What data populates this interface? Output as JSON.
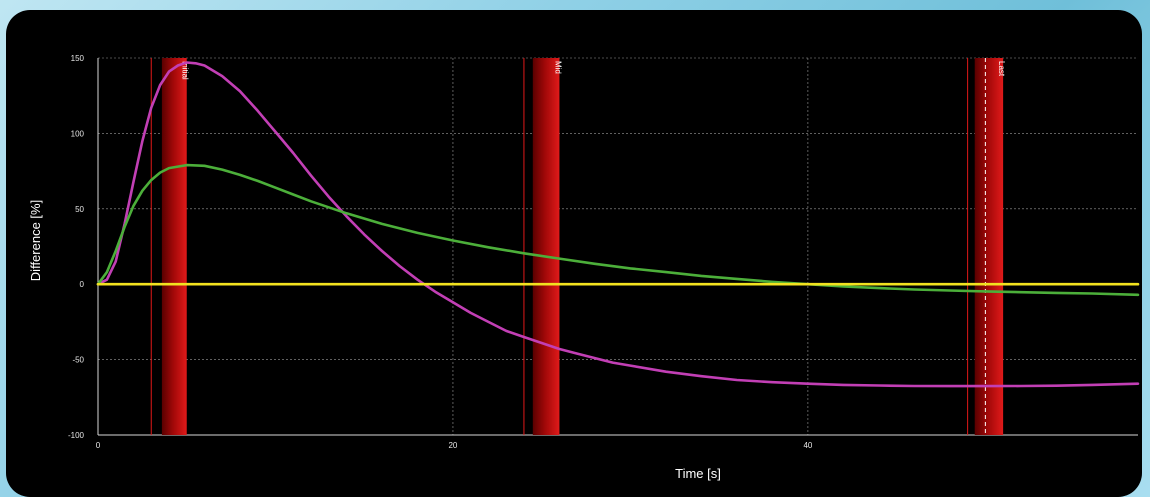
{
  "chart_data": {
    "type": "line",
    "xlabel": "Time [s]",
    "ylabel": "Difference [%]",
    "xlim": [
      0,
      58.6
    ],
    "ylim": [
      -100,
      150
    ],
    "x_ticks": [
      0,
      20,
      40
    ],
    "y_ticks": [
      -100,
      -50,
      0,
      50,
      100,
      150
    ],
    "grid": true,
    "background": "#000000",
    "markers": [
      {
        "label": "Initial",
        "line_x": 3.0,
        "band_start": 3.6,
        "band_end": 5.0
      },
      {
        "label": "Mid",
        "line_x": 24.0,
        "band_start": 24.5,
        "band_end": 26.0
      },
      {
        "label": "Last",
        "line_x": 49.0,
        "band_start": 49.4,
        "band_end": 51.0,
        "dashed_x": 50.0
      }
    ],
    "series": [
      {
        "color": "#c23fb5",
        "points": [
          [
            0,
            0
          ],
          [
            0.5,
            3
          ],
          [
            1,
            15
          ],
          [
            1.5,
            40
          ],
          [
            2,
            68
          ],
          [
            2.5,
            95
          ],
          [
            3,
            117
          ],
          [
            3.5,
            132
          ],
          [
            4,
            141
          ],
          [
            4.5,
            145
          ],
          [
            5,
            147
          ],
          [
            5.5,
            146.5
          ],
          [
            6,
            145
          ],
          [
            7,
            138
          ],
          [
            8,
            128
          ],
          [
            9,
            115
          ],
          [
            10,
            101
          ],
          [
            11,
            87
          ],
          [
            12,
            72
          ],
          [
            13,
            58
          ],
          [
            14,
            45
          ],
          [
            15,
            33
          ],
          [
            16,
            22
          ],
          [
            17,
            12
          ],
          [
            18,
            3
          ],
          [
            19,
            -5
          ],
          [
            20,
            -12
          ],
          [
            21,
            -19
          ],
          [
            22,
            -25
          ],
          [
            23,
            -31
          ],
          [
            24,
            -35
          ],
          [
            25,
            -39
          ],
          [
            26,
            -43
          ],
          [
            27,
            -46
          ],
          [
            28,
            -49
          ],
          [
            29,
            -52
          ],
          [
            30,
            -54
          ],
          [
            32,
            -58
          ],
          [
            34,
            -61
          ],
          [
            36,
            -63.5
          ],
          [
            38,
            -65
          ],
          [
            40,
            -66
          ],
          [
            42,
            -66.8
          ],
          [
            44,
            -67.2
          ],
          [
            46,
            -67.5
          ],
          [
            48,
            -67.6
          ],
          [
            50,
            -67.6
          ],
          [
            52,
            -67.5
          ],
          [
            54,
            -67.3
          ],
          [
            56,
            -66.8
          ],
          [
            58.6,
            -66
          ]
        ]
      },
      {
        "color": "#4caf3a",
        "points": [
          [
            0,
            0
          ],
          [
            0.5,
            8
          ],
          [
            1,
            22
          ],
          [
            1.5,
            38
          ],
          [
            2,
            52
          ],
          [
            2.5,
            62
          ],
          [
            3,
            69
          ],
          [
            3.5,
            74
          ],
          [
            4,
            77
          ],
          [
            5,
            79
          ],
          [
            6,
            78.5
          ],
          [
            7,
            76
          ],
          [
            8,
            72.5
          ],
          [
            9,
            68.5
          ],
          [
            10,
            64
          ],
          [
            11,
            59.5
          ],
          [
            12,
            55
          ],
          [
            13,
            51
          ],
          [
            14,
            47
          ],
          [
            16,
            40
          ],
          [
            18,
            34
          ],
          [
            20,
            29
          ],
          [
            22,
            24.5
          ],
          [
            24,
            20.5
          ],
          [
            26,
            17
          ],
          [
            28,
            13.5
          ],
          [
            30,
            10.5
          ],
          [
            32,
            8
          ],
          [
            34,
            5.5
          ],
          [
            36,
            3.5
          ],
          [
            38,
            1.5
          ],
          [
            40,
            0
          ],
          [
            42,
            -1.5
          ],
          [
            44,
            -2.6
          ],
          [
            46,
            -3.5
          ],
          [
            48,
            -4.2
          ],
          [
            50,
            -4.8
          ],
          [
            52,
            -5.3
          ],
          [
            54,
            -5.8
          ],
          [
            56,
            -6.2
          ],
          [
            58.6,
            -7
          ]
        ]
      },
      {
        "color": "#f2e21f",
        "points": [
          [
            0,
            0
          ],
          [
            58.6,
            0
          ]
        ]
      }
    ]
  }
}
